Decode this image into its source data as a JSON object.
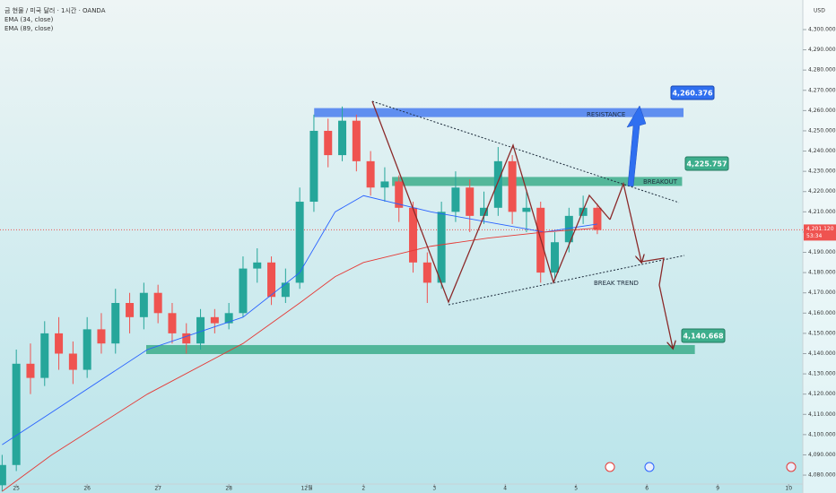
{
  "chart_data": {
    "type": "candlestick",
    "title": "금 현물 / 미국 달러 · 1시간 · OANDA",
    "currency": "USD",
    "x": [
      -0.2,
      0,
      0.2,
      0.4,
      0.6,
      0.8,
      1,
      1.2,
      1.4,
      1.6,
      1.8,
      2,
      2.2,
      2.4,
      2.6,
      2.8,
      3,
      3.2,
      3.4,
      3.6,
      3.8,
      4,
      4.2,
      4.4,
      4.6,
      4.8,
      5,
      5.2,
      5.4,
      5.6,
      5.8,
      6,
      6.2,
      6.4,
      6.6,
      6.8,
      7,
      7.2,
      7.4,
      7.6,
      7.8,
      8,
      8.2
    ],
    "open": [
      4075,
      4085,
      4135,
      4128,
      4150,
      4140,
      4132,
      4152,
      4145,
      4165,
      4158,
      4170,
      4160,
      4150,
      4145,
      4158,
      4155,
      4160,
      4182,
      4185,
      4168,
      4175,
      4215,
      4250,
      4238,
      4255,
      4235,
      4222,
      4225,
      4212,
      4185,
      4175,
      4210,
      4222,
      4208,
      4212,
      4235,
      4210,
      4212,
      4180,
      4195,
      4208,
      4212
    ],
    "high": [
      4090,
      4142,
      4145,
      4156,
      4158,
      4146,
      4158,
      4160,
      4172,
      4170,
      4175,
      4174,
      4165,
      4155,
      4162,
      4162,
      4165,
      4188,
      4192,
      4188,
      4182,
      4222,
      4258,
      4256,
      4262,
      4258,
      4240,
      4232,
      4228,
      4215,
      4190,
      4215,
      4230,
      4226,
      4220,
      4242,
      4238,
      4220,
      4215,
      4200,
      4212,
      4218,
      4214
    ],
    "low": [
      4072,
      4082,
      4120,
      4124,
      4132,
      4125,
      4128,
      4140,
      4140,
      4150,
      4152,
      4155,
      4145,
      4140,
      4142,
      4150,
      4152,
      4158,
      4175,
      4164,
      4165,
      4172,
      4210,
      4232,
      4235,
      4230,
      4218,
      4215,
      4205,
      4180,
      4165,
      4172,
      4205,
      4200,
      4204,
      4208,
      4204,
      4200,
      4175,
      4176,
      4190,
      4204,
      4199
    ],
    "close": [
      4085,
      4135,
      4128,
      4150,
      4140,
      4132,
      4152,
      4145,
      4165,
      4158,
      4170,
      4160,
      4150,
      4145,
      4158,
      4155,
      4160,
      4182,
      4185,
      4168,
      4175,
      4215,
      4250,
      4238,
      4255,
      4235,
      4222,
      4225,
      4212,
      4185,
      4175,
      4210,
      4222,
      4208,
      4212,
      4235,
      4210,
      4212,
      4180,
      4195,
      4208,
      4212,
      4201
    ],
    "up_color": "#26a69a",
    "down_color": "#ef5350",
    "series": [
      {
        "name": "EMA (34, close)",
        "color": "#2962ff",
        "x": [
          -0.2,
          0.5,
          1.85,
          3.2,
          4,
          4.5,
          4.9,
          5.85,
          6.65,
          7.45,
          8.2
        ],
        "values": [
          4095,
          4111,
          4142,
          4158,
          4180,
          4210,
          4218,
          4210,
          4205,
          4200,
          4204
        ]
      },
      {
        "name": "EMA (89, close)",
        "color": "#e53935",
        "x": [
          -0.2,
          0.5,
          1.85,
          3.2,
          4,
          4.5,
          4.9,
          5.85,
          6.65,
          7.45,
          8.2
        ],
        "values": [
          4072,
          4090,
          4120,
          4145,
          4165,
          4178,
          4185,
          4193,
          4197,
          4200,
          4202
        ]
      }
    ],
    "zones": [
      {
        "color": "#4a7ef0",
        "x": [
          4.21,
          9.41
        ],
        "y": [
          4257,
          4261
        ]
      },
      {
        "color": "#3dae8c",
        "x": [
          5.31,
          9.39
        ],
        "y": [
          4223,
          4227
        ]
      },
      {
        "color": "#3dae8c",
        "x": [
          1.84,
          9.57
        ],
        "y": [
          4140,
          4144
        ]
      }
    ],
    "annotations": {
      "resistance": "RESISTANCE",
      "breakout": "BREAKOUT",
      "break_trend": "BREAK TREND",
      "target_up": "4,260.376",
      "target_mid": "4,225.757",
      "target_down": "4,140.668"
    },
    "last_price": {
      "value": 4201.12,
      "label": "4,201.120"
    },
    "countdown": "53:34",
    "xlim": [
      -0.23,
      11.1
    ],
    "ylim": [
      4075.6,
      4314.6
    ],
    "xticks": [
      {
        "value": 0,
        "label": "25"
      },
      {
        "value": 1,
        "label": "26"
      },
      {
        "value": 2,
        "label": "27"
      },
      {
        "value": 3,
        "label": "28"
      },
      {
        "value": 4.1,
        "label": "12월"
      },
      {
        "value": 4.9,
        "label": "2"
      },
      {
        "value": 5.9,
        "label": "3"
      },
      {
        "value": 6.9,
        "label": "4"
      },
      {
        "value": 7.9,
        "label": "5"
      },
      {
        "value": 8.9,
        "label": "6"
      },
      {
        "value": 9.9,
        "label": "9"
      },
      {
        "value": 10.9,
        "label": "10"
      }
    ],
    "yticks": [
      {
        "value": 4080,
        "label": "4,080.000"
      },
      {
        "value": 4090,
        "label": "4,090.000"
      },
      {
        "value": 4100,
        "label": "4,100.000"
      },
      {
        "value": 4110,
        "label": "4,110.000"
      },
      {
        "value": 4120,
        "label": "4,120.000"
      },
      {
        "value": 4130,
        "label": "4,130.000"
      },
      {
        "value": 4140,
        "label": "4,140.000"
      },
      {
        "value": 4150,
        "label": "4,150.000"
      },
      {
        "value": 4160,
        "label": "4,160.000"
      },
      {
        "value": 4170,
        "label": "4,170.000"
      },
      {
        "value": 4180,
        "label": "4,180.000"
      },
      {
        "value": 4190,
        "label": "4,190.000"
      },
      {
        "value": 4200,
        "label": "4,200.000"
      },
      {
        "value": 4210,
        "label": "4,210.000"
      },
      {
        "value": 4220,
        "label": "4,220.000"
      },
      {
        "value": 4230,
        "label": "4,230.000"
      },
      {
        "value": 4240,
        "label": "4,240.000"
      },
      {
        "value": 4250,
        "label": "4,250.000"
      },
      {
        "value": 4260,
        "label": "4,260.000"
      },
      {
        "value": 4270,
        "label": "4,270.000"
      },
      {
        "value": 4280,
        "label": "4,280.000"
      },
      {
        "value": 4290,
        "label": "4,290.000"
      },
      {
        "value": 4300,
        "label": "4,300.000"
      }
    ]
  }
}
